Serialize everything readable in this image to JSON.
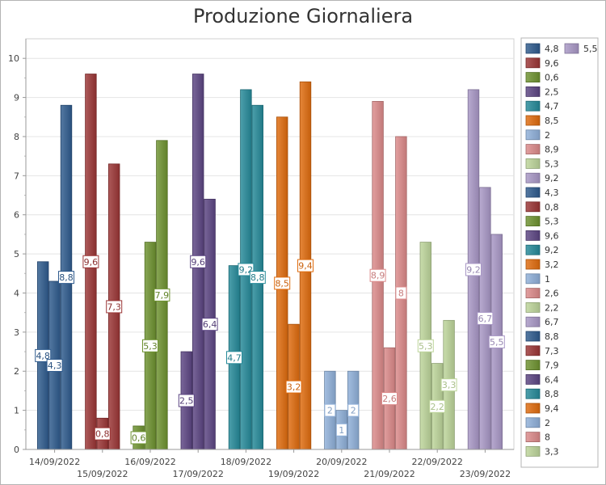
{
  "chart_data": {
    "type": "bar",
    "title": "Produzione Giornaliera",
    "xlabel": "",
    "ylabel": "",
    "ylim": [
      0,
      10.5
    ],
    "yticks": [
      0,
      1,
      2,
      3,
      4,
      5,
      6,
      7,
      8,
      9,
      10
    ],
    "grid": true,
    "legend_position": "right",
    "categories": [
      "14/09/2022",
      "15/09/2022",
      "16/09/2022",
      "17/09/2022",
      "18/09/2022",
      "19/09/2022",
      "20/09/2022",
      "21/09/2022",
      "22/09/2022",
      "23/09/2022"
    ],
    "category_colors": [
      "#2f5b8e",
      "#9b3535",
      "#6e9330",
      "#5c4583",
      "#258a99",
      "#e06c0e",
      "#8fb0d9",
      "#dc8a8a",
      "#bdd59a",
      "#a897c6"
    ],
    "values": [
      [
        4.8,
        4.3,
        8.8
      ],
      [
        9.6,
        0.8,
        7.3
      ],
      [
        0.6,
        5.3,
        7.9
      ],
      [
        2.5,
        9.6,
        6.4
      ],
      [
        4.7,
        9.2,
        8.8
      ],
      [
        8.5,
        3.2,
        9.4
      ],
      [
        2,
        1,
        2
      ],
      [
        8.9,
        2.6,
        8
      ],
      [
        5.3,
        2.2,
        3.3
      ],
      [
        9.2,
        6.7,
        5.5
      ]
    ],
    "value_labels": [
      [
        "4,8",
        "4,3",
        "8,8"
      ],
      [
        "9,6",
        "0,8",
        "7,3"
      ],
      [
        "0,6",
        "5,3",
        "7,9"
      ],
      [
        "2,5",
        "9,6",
        "6,4"
      ],
      [
        "4,7",
        "9,2",
        "8,8"
      ],
      [
        "8,5",
        "3,2",
        "9,4"
      ],
      [
        "2",
        "1",
        "2"
      ],
      [
        "8,9",
        "2,6",
        "8"
      ],
      [
        "5,3",
        "2,2",
        "3,3"
      ],
      [
        "9,2",
        "6,7",
        "5,5"
      ]
    ],
    "legend_entries": [
      "4,8",
      "9,6",
      "0,6",
      "2,5",
      "4,7",
      "8,5",
      "2",
      "8,9",
      "5,3",
      "9,2",
      "4,3",
      "0,8",
      "5,3",
      "9,6",
      "9,2",
      "3,2",
      "1",
      "2,6",
      "2,2",
      "6,7",
      "8,8",
      "7,3",
      "7,9",
      "6,4",
      "8,8",
      "9,4",
      "2",
      "8",
      "3,3",
      "5,5"
    ]
  }
}
